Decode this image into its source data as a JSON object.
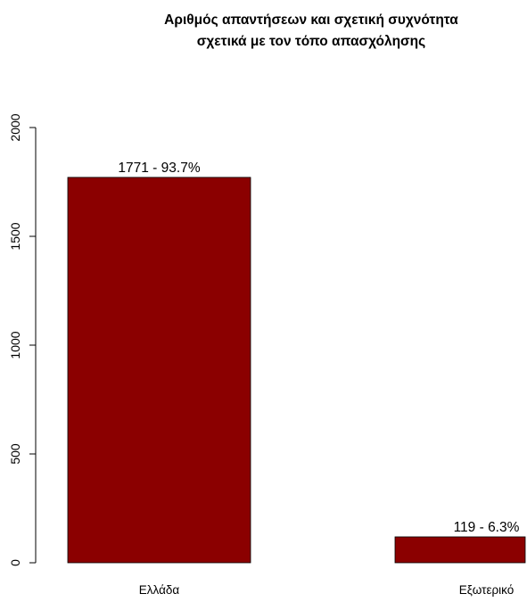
{
  "chart_data": {
    "type": "bar",
    "title": "Αριθμός απαντήσεων και σχετική συχνότητα",
    "subtitle": "σχετικά με τον τόπο απασχόλησης",
    "xlabel": "",
    "ylabel": "",
    "categories": [
      "Ελλάδα",
      "Εξωτερικό"
    ],
    "values": [
      1771,
      119
    ],
    "data_labels": [
      "1771 - 93.7%",
      "119 - 6.3%"
    ],
    "ylim": [
      0,
      2000
    ],
    "yticks": [
      0,
      500,
      1000,
      1500,
      2000
    ],
    "ytick_labels": [
      "0",
      "500",
      "1000",
      "1500",
      "2000"
    ],
    "bar_color": "#8b0000",
    "grid": false
  }
}
